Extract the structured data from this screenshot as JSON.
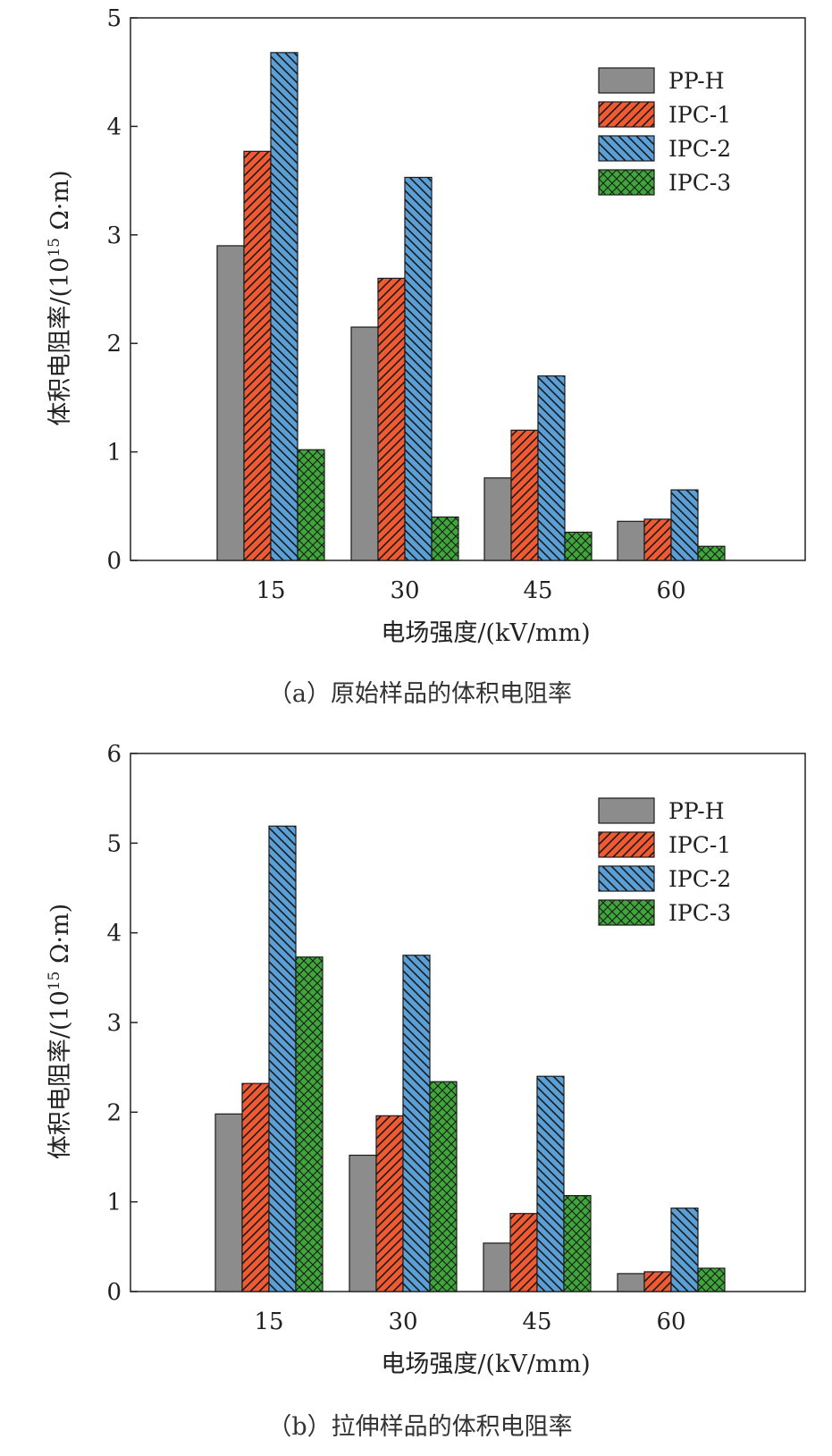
{
  "chart_data": [
    {
      "type": "bar",
      "caption": "（a）原始样品的体积电阻率",
      "xlabel": "电场强度/(kV/mm)",
      "ylabel_main": "体积电阻率/(10",
      "ylabel_sup": "15",
      "ylabel_tail": " Ω·m)",
      "ylim": [
        0,
        5
      ],
      "yticks": [
        "0",
        "1",
        "2",
        "3",
        "4",
        "5"
      ],
      "categories": [
        "15",
        "30",
        "45",
        "60"
      ],
      "legend_position": "top-right",
      "series": [
        {
          "name": "PP-H",
          "color": "#8c8c8c",
          "pattern": "solid",
          "values": [
            2.9,
            2.15,
            0.76,
            0.36
          ]
        },
        {
          "name": "IPC-1",
          "color": "#f05a32",
          "pattern": "forward-hatch",
          "values": [
            3.77,
            2.6,
            1.2,
            0.38
          ]
        },
        {
          "name": "IPC-2",
          "color": "#5a9fd6",
          "pattern": "backward-hatch",
          "values": [
            4.68,
            3.53,
            1.7,
            0.65
          ]
        },
        {
          "name": "IPC-3",
          "color": "#3fa63a",
          "pattern": "crosshatch",
          "values": [
            1.02,
            0.4,
            0.26,
            0.13
          ]
        }
      ]
    },
    {
      "type": "bar",
      "caption": "（b）拉伸样品的体积电阻率",
      "xlabel": "电场强度/(kV/mm)",
      "ylabel_main": "体积电阻率/(10",
      "ylabel_sup": "15",
      "ylabel_tail": " Ω·m)",
      "ylim": [
        0,
        6
      ],
      "yticks": [
        "0",
        "1",
        "2",
        "3",
        "4",
        "5",
        "6"
      ],
      "categories": [
        "15",
        "30",
        "45",
        "60"
      ],
      "legend_position": "top-right",
      "series": [
        {
          "name": "PP-H",
          "color": "#8c8c8c",
          "pattern": "solid",
          "values": [
            1.98,
            1.52,
            0.54,
            0.2
          ]
        },
        {
          "name": "IPC-1",
          "color": "#f05a32",
          "pattern": "forward-hatch",
          "values": [
            2.32,
            1.96,
            0.87,
            0.22
          ]
        },
        {
          "name": "IPC-2",
          "color": "#5a9fd6",
          "pattern": "backward-hatch",
          "values": [
            5.19,
            3.75,
            2.4,
            0.93
          ]
        },
        {
          "name": "IPC-3",
          "color": "#3fa63a",
          "pattern": "crosshatch",
          "values": [
            3.73,
            2.34,
            1.07,
            0.26
          ]
        }
      ]
    }
  ]
}
